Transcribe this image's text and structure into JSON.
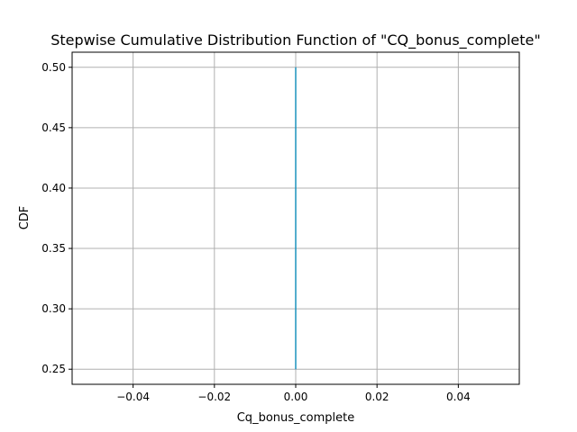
{
  "chart_data": {
    "type": "line",
    "title": "Stepwise Cumulative Distribution Function of \"CQ_bonus_complete\"",
    "xlabel": "Cq_bonus_complete",
    "ylabel": "CDF",
    "xlim": [
      -0.055,
      0.055
    ],
    "ylim": [
      0.2375,
      0.5125
    ],
    "xticks": [
      -0.04,
      -0.02,
      0.0,
      0.02,
      0.04
    ],
    "xtick_labels": [
      "−0.04",
      "−0.02",
      "0.00",
      "0.02",
      "0.04"
    ],
    "yticks": [
      0.25,
      0.3,
      0.35,
      0.4,
      0.45,
      0.5
    ],
    "ytick_labels": [
      "0.25",
      "0.30",
      "0.35",
      "0.40",
      "0.45",
      "0.50"
    ],
    "grid": true,
    "series": [
      {
        "color": "#1f77b4",
        "x": [
          0.0,
          0.0
        ],
        "y": [
          0.25,
          0.5
        ]
      }
    ],
    "overlay_color": "#17becf"
  }
}
